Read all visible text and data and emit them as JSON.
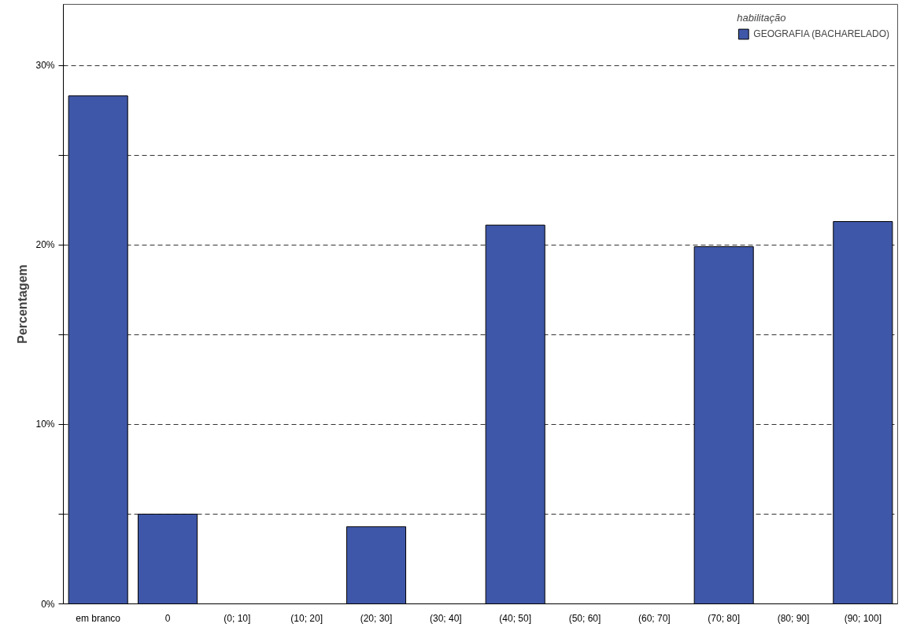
{
  "chart_data": {
    "type": "bar",
    "ylabel": "Percentagem",
    "legend_title": "habilitação",
    "categories": [
      "em branco",
      "0",
      "(0; 10]",
      "(10; 20]",
      "(20; 30]",
      "(30; 40]",
      "(40; 50]",
      "(50; 60]",
      "(60; 70]",
      "(70; 80]",
      "(80; 90]",
      "(90; 100]"
    ],
    "series": [
      {
        "name": "GEOGRAFIA (BACHARELADO)",
        "color": "#3f57a8",
        "values": [
          28.3,
          5.0,
          null,
          null,
          4.3,
          null,
          21.1,
          null,
          null,
          19.9,
          null,
          21.3
        ]
      }
    ],
    "ylim": [
      0,
      33.4
    ],
    "yticks": [
      {
        "value": 0,
        "label": "0%"
      },
      {
        "value": 5,
        "label": null
      },
      {
        "value": 10,
        "label": "10%"
      },
      {
        "value": 15,
        "label": null
      },
      {
        "value": 20,
        "label": "20%"
      },
      {
        "value": 25,
        "label": null
      },
      {
        "value": 30,
        "label": "30%"
      }
    ],
    "grid": "y",
    "legend": "top right"
  }
}
